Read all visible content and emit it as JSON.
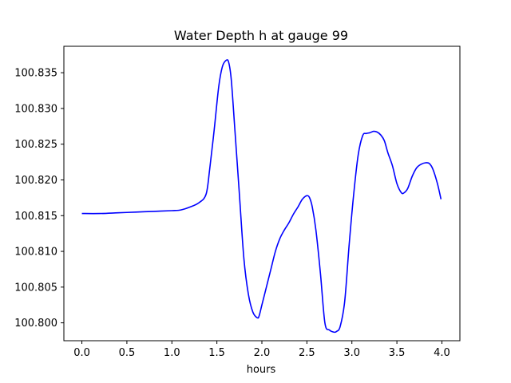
{
  "chart_data": {
    "type": "line",
    "title": "Water Depth h at gauge 99",
    "xlabel": "hours",
    "ylabel": "",
    "xlim": [
      -0.2,
      4.2
    ],
    "ylim": [
      100.7975,
      100.8387
    ],
    "xticks": [
      0.0,
      0.5,
      1.0,
      1.5,
      2.0,
      2.5,
      3.0,
      3.5,
      4.0
    ],
    "xtick_labels": [
      "0.0",
      "0.5",
      "1.0",
      "1.5",
      "2.0",
      "2.5",
      "3.0",
      "3.5",
      "4.0"
    ],
    "yticks": [
      100.8,
      100.805,
      100.81,
      100.815,
      100.82,
      100.825,
      100.83,
      100.835
    ],
    "ytick_labels": [
      "100.800",
      "100.805",
      "100.810",
      "100.815",
      "100.820",
      "100.825",
      "100.830",
      "100.835"
    ],
    "grid": false,
    "series": [
      {
        "color": "#0000ff",
        "x": [
          0.0,
          0.2,
          0.4,
          0.6,
          0.8,
          1.0,
          1.1,
          1.2,
          1.3,
          1.38,
          1.42,
          1.47,
          1.52,
          1.56,
          1.6,
          1.63,
          1.66,
          1.7,
          1.75,
          1.8,
          1.85,
          1.9,
          1.95,
          1.97,
          2.0,
          2.05,
          2.1,
          2.15,
          2.2,
          2.25,
          2.3,
          2.35,
          2.4,
          2.45,
          2.5,
          2.53,
          2.56,
          2.6,
          2.65,
          2.7,
          2.75,
          2.8,
          2.83,
          2.87,
          2.92,
          2.97,
          3.02,
          3.07,
          3.12,
          3.16,
          3.2,
          3.24,
          3.28,
          3.32,
          3.36,
          3.4,
          3.45,
          3.5,
          3.55,
          3.58,
          3.62,
          3.67,
          3.72,
          3.77,
          3.82,
          3.86,
          3.9,
          3.95,
          3.99
        ],
        "y": [
          100.8153,
          100.8153,
          100.8154,
          100.8155,
          100.8156,
          100.8157,
          100.8158,
          100.8162,
          100.8168,
          100.818,
          100.8215,
          100.827,
          100.833,
          100.8358,
          100.8367,
          100.8365,
          100.834,
          100.827,
          100.818,
          100.809,
          100.804,
          100.8015,
          100.8007,
          100.801,
          100.8025,
          100.805,
          100.8075,
          100.81,
          100.8118,
          100.813,
          100.814,
          100.8152,
          100.8162,
          100.8173,
          100.8178,
          100.8175,
          100.8162,
          100.813,
          100.807,
          100.8,
          100.799,
          100.7987,
          100.7988,
          100.7995,
          100.803,
          100.811,
          100.818,
          100.8235,
          100.8262,
          100.8265,
          100.8266,
          100.8268,
          100.8267,
          100.8263,
          100.8255,
          100.8238,
          100.822,
          100.8195,
          100.8182,
          100.8182,
          100.8188,
          100.8205,
          100.8217,
          100.8222,
          100.8224,
          100.8223,
          100.8215,
          100.8195,
          100.8173
        ]
      }
    ]
  }
}
